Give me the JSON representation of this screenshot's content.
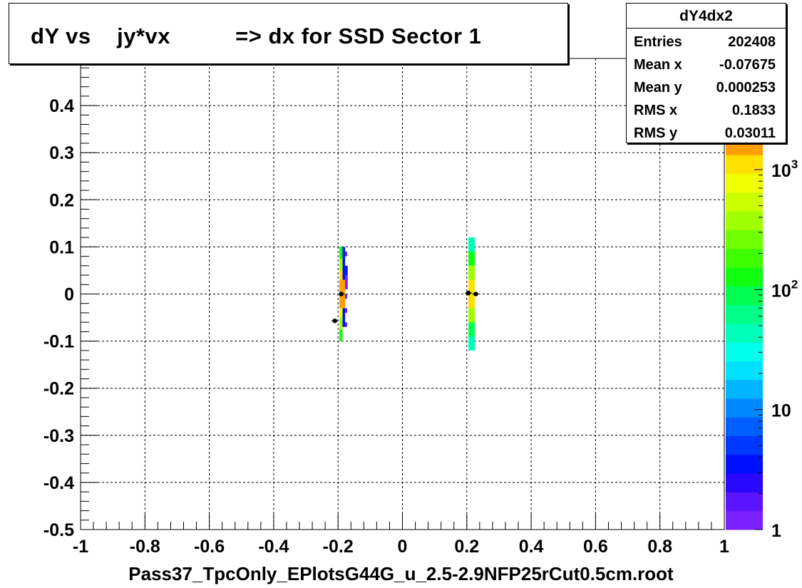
{
  "title": "dY vs    jy*vx          => dx for SSD Sector 1",
  "footer": "Pass37_TpcOnly_EPlotsG44G_u_2.5-2.9NFP25rCut0.5cm.root",
  "stats": {
    "name": "dY4dx2",
    "rows": [
      {
        "key": "Entries",
        "value": "202408"
      },
      {
        "key": "Mean x",
        "value": "-0.07675"
      },
      {
        "key": "Mean y",
        "value": "0.000253"
      },
      {
        "key": "RMS x",
        "value": "0.1833"
      },
      {
        "key": "RMS y",
        "value": "0.03011"
      }
    ]
  },
  "chart_data": {
    "type": "heatmap",
    "title": "dY vs    jy*vx          => dx for SSD Sector 1",
    "xlabel": "Pass37_TpcOnly_EPlotsG44G_u_2.5-2.9NFP25rCut0.5cm.root",
    "ylabel": "",
    "xlim": [
      -1,
      1
    ],
    "ylim": [
      -0.5,
      0.5
    ],
    "x_ticks": [
      "-1",
      "-0.8",
      "-0.6",
      "-0.4",
      "-0.2",
      "0",
      "0.2",
      "0.4",
      "0.6",
      "0.8",
      "1"
    ],
    "y_ticks": [
      "-0.5",
      "-0.4",
      "-0.3",
      "-0.2",
      "-0.1",
      "0",
      "0.1",
      "0.2",
      "0.3",
      "0.4"
    ],
    "grid": true,
    "colorbar": {
      "scale": "log",
      "labels": [
        {
          "base": "1",
          "exp": "",
          "v": 1
        },
        {
          "base": "10",
          "exp": "",
          "v": 10
        },
        {
          "base": "10",
          "exp": "2",
          "v": 100
        },
        {
          "base": "10",
          "exp": "3",
          "v": 1000
        }
      ],
      "max": 1900,
      "colors": [
        "#7a1fff",
        "#5a14ff",
        "#2a08ff",
        "#0010ff",
        "#0038ff",
        "#0060ff",
        "#0088ff",
        "#00b4ff",
        "#00e0ff",
        "#00ffe8",
        "#00ffb8",
        "#00ff88",
        "#00ff50",
        "#10ff10",
        "#40ff00",
        "#70ff00",
        "#a0ff00",
        "#ccff00",
        "#f0ff00",
        "#ffe000",
        "#ffa000"
      ]
    },
    "cells": [
      {
        "x0": -0.196,
        "x1": -0.186,
        "y0": -0.1,
        "y1": -0.075,
        "v": 150
      },
      {
        "x0": -0.196,
        "x1": -0.186,
        "y0": -0.075,
        "y1": -0.05,
        "v": 400
      },
      {
        "x0": -0.196,
        "x1": -0.186,
        "y0": -0.05,
        "y1": -0.03,
        "v": 900
      },
      {
        "x0": -0.196,
        "x1": -0.186,
        "y0": -0.03,
        "y1": -0.01,
        "v": 1900
      },
      {
        "x0": -0.196,
        "x1": -0.186,
        "y0": -0.01,
        "y1": 0.01,
        "v": 1900
      },
      {
        "x0": -0.196,
        "x1": -0.186,
        "y0": 0.01,
        "y1": 0.03,
        "v": 1900
      },
      {
        "x0": -0.196,
        "x1": -0.186,
        "y0": 0.03,
        "y1": 0.05,
        "v": 1000
      },
      {
        "x0": -0.196,
        "x1": -0.186,
        "y0": 0.05,
        "y1": 0.075,
        "v": 400
      },
      {
        "x0": -0.196,
        "x1": -0.186,
        "y0": 0.075,
        "y1": 0.1,
        "v": 150
      },
      {
        "x0": -0.186,
        "x1": -0.178,
        "y0": -0.07,
        "y1": -0.03,
        "v": 3
      },
      {
        "x0": -0.186,
        "x1": -0.178,
        "y0": -0.03,
        "y1": 0.03,
        "v": 1900
      },
      {
        "x0": -0.186,
        "x1": -0.178,
        "y0": 0.03,
        "y1": 0.1,
        "v": 3
      },
      {
        "x0": -0.178,
        "x1": -0.172,
        "y0": -0.07,
        "y1": -0.06,
        "v": 2
      },
      {
        "x0": -0.178,
        "x1": -0.172,
        "y0": -0.04,
        "y1": -0.03,
        "v": 2
      },
      {
        "x0": -0.178,
        "x1": -0.172,
        "y0": -0.01,
        "y1": 0.0,
        "v": 2
      },
      {
        "x0": -0.178,
        "x1": -0.17,
        "y0": 0.01,
        "y1": 0.04,
        "v": 1
      },
      {
        "x0": -0.178,
        "x1": -0.17,
        "y0": 0.04,
        "y1": 0.06,
        "v": 3
      },
      {
        "x0": -0.178,
        "x1": -0.172,
        "y0": 0.08,
        "y1": 0.09,
        "v": 2
      },
      {
        "x0": 0.205,
        "x1": 0.225,
        "y0": -0.12,
        "y1": -0.09,
        "v": 40
      },
      {
        "x0": 0.205,
        "x1": 0.225,
        "y0": -0.09,
        "y1": -0.06,
        "v": 100
      },
      {
        "x0": 0.205,
        "x1": 0.225,
        "y0": -0.06,
        "y1": -0.03,
        "v": 450
      },
      {
        "x0": 0.205,
        "x1": 0.225,
        "y0": -0.03,
        "y1": 0.0,
        "v": 1000
      },
      {
        "x0": 0.205,
        "x1": 0.225,
        "y0": 0.0,
        "y1": 0.03,
        "v": 1100
      },
      {
        "x0": 0.205,
        "x1": 0.225,
        "y0": 0.03,
        "y1": 0.06,
        "v": 450
      },
      {
        "x0": 0.205,
        "x1": 0.225,
        "y0": 0.06,
        "y1": 0.09,
        "v": 120
      },
      {
        "x0": 0.205,
        "x1": 0.225,
        "y0": 0.09,
        "y1": 0.12,
        "v": 40
      }
    ],
    "points": [
      {
        "x": -0.21,
        "y": -0.057
      },
      {
        "x": -0.19,
        "y": 0.0
      },
      {
        "x": 0.205,
        "y": 0.002
      },
      {
        "x": 0.228,
        "y": 0.0
      }
    ]
  }
}
